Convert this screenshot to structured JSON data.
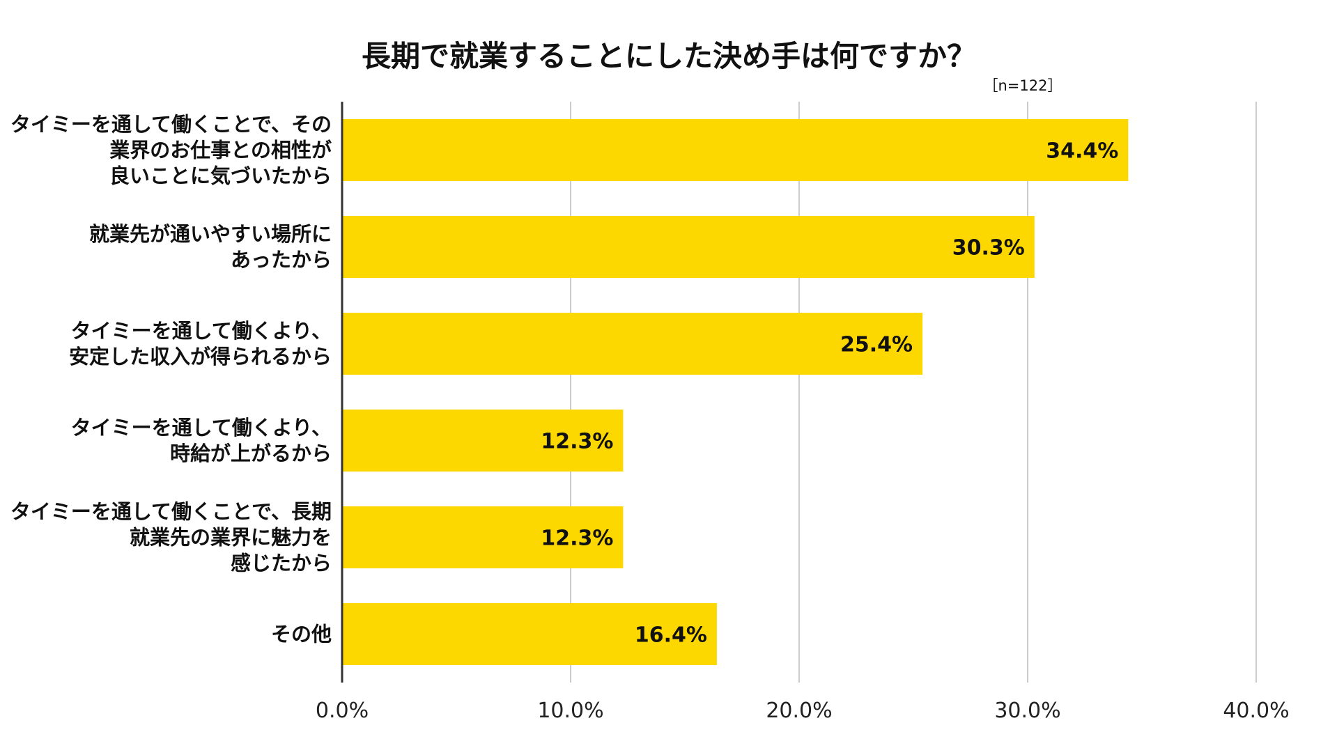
{
  "chart_data": {
    "type": "bar",
    "orientation": "horizontal",
    "title": "長期で就業することにした決め手は何ですか？",
    "subtitle": "［n=122］",
    "categories": [
      [
        "タイミーを通して働くことで、その",
        "業界のお仕事との相性が",
        "良いことに気づいたから"
      ],
      [
        "就業先が通いやすい場所に",
        "あったから"
      ],
      [
        "タイミーを通して働くより、",
        "安定した収入が得られるから"
      ],
      [
        "タイミーを通して働くより、",
        "時給が上がるから"
      ],
      [
        "タイミーを通して働くことで、長期",
        "就業先の業界に魅力を",
        "感じたから"
      ],
      [
        "その他"
      ]
    ],
    "values": [
      34.4,
      30.3,
      25.4,
      12.3,
      12.3,
      16.4
    ],
    "data_labels": [
      "34.4%",
      "30.3%",
      "25.4%",
      "12.3%",
      "12.3%",
      "16.4%"
    ],
    "xlim": [
      0,
      40
    ],
    "x_ticks": [
      0,
      10,
      20,
      30,
      40
    ],
    "x_tick_labels": [
      "0.0%",
      "10.0%",
      "20.0%",
      "30.0%",
      "40.0%"
    ],
    "grid": true,
    "legend": "none",
    "bar_color": "#FDD800",
    "grid_color": "#cccccc",
    "axis_color": "#333333",
    "text_color": "#111111"
  }
}
